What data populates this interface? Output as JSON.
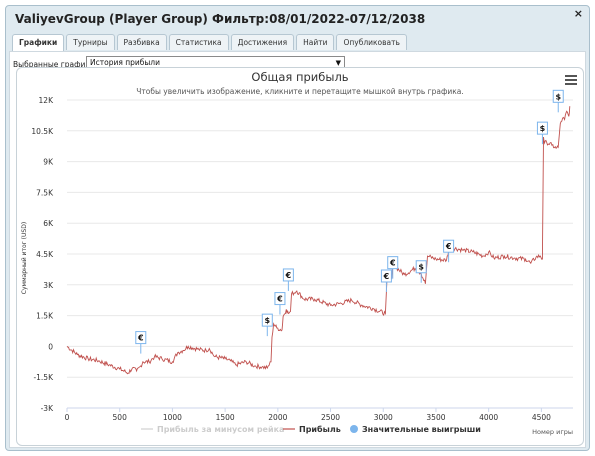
{
  "window": {
    "title": "ValiyevGroup (Player Group) Фильтр:08/01/2022-07/12/2038",
    "close_label": "×"
  },
  "tabs": [
    {
      "label": "Графики",
      "active": true
    },
    {
      "label": "Турниры",
      "active": false
    },
    {
      "label": "Разбивка",
      "active": false
    },
    {
      "label": "Статистика",
      "active": false
    },
    {
      "label": "Достижения",
      "active": false
    },
    {
      "label": "Найти",
      "active": false
    },
    {
      "label": "Опубликовать",
      "active": false
    }
  ],
  "selector": {
    "label": "Выбранные графики:",
    "value": "История прибыли"
  },
  "chart_data": {
    "type": "line",
    "title": "Общая прибыль",
    "subtitle": "Чтобы увеличить изображение, кликните и перетащите мышкой внутрь графика.",
    "xlabel": "Номер игры",
    "ylabel": "Суммарный итог (USD)",
    "xlim": [
      0,
      4800
    ],
    "ylim": [
      -3000,
      12000
    ],
    "x_ticks": [
      0,
      500,
      1000,
      1500,
      2000,
      2500,
      3000,
      3500,
      4000,
      4500
    ],
    "x_tick_labels": [
      "0",
      "500",
      "1000",
      "1500",
      "2000",
      "2500",
      "3000",
      "3500",
      "4000",
      "4500"
    ],
    "y_ticks": [
      -3000,
      -1500,
      0,
      1500,
      3000,
      4500,
      6000,
      7500,
      9000,
      10500,
      12000
    ],
    "y_tick_labels": [
      "-3K",
      "-1.5K",
      "0",
      "1.5K",
      "3K",
      "4.5K",
      "6K",
      "7.5K",
      "9K",
      "10.5K",
      "12K"
    ],
    "grid": true,
    "legend_position": "bottom-center",
    "series": [
      {
        "name": "Прибыль за минусом рейка",
        "visible": false,
        "color": "#d0d0d0"
      },
      {
        "name": "Прибыль",
        "color": "#c0504d",
        "points": [
          [
            0,
            0
          ],
          [
            100,
            -400
          ],
          [
            200,
            -600
          ],
          [
            300,
            -700
          ],
          [
            400,
            -900
          ],
          [
            500,
            -1100
          ],
          [
            580,
            -1300
          ],
          [
            620,
            -1050
          ],
          [
            660,
            -1200
          ],
          [
            700,
            -950
          ],
          [
            720,
            -750
          ],
          [
            780,
            -750
          ],
          [
            830,
            -500
          ],
          [
            900,
            -600
          ],
          [
            1000,
            -750
          ],
          [
            1050,
            -300
          ],
          [
            1100,
            -200
          ],
          [
            1150,
            0
          ],
          [
            1250,
            -150
          ],
          [
            1320,
            -200
          ],
          [
            1350,
            -100
          ],
          [
            1400,
            -500
          ],
          [
            1500,
            -600
          ],
          [
            1550,
            -700
          ],
          [
            1600,
            -900
          ],
          [
            1700,
            -750
          ],
          [
            1780,
            -950
          ],
          [
            1850,
            -1000
          ],
          [
            1900,
            -1050
          ],
          [
            1935,
            -750
          ],
          [
            1945,
            450
          ],
          [
            1960,
            1100
          ],
          [
            1990,
            900
          ],
          [
            2040,
            800
          ],
          [
            2050,
            1450
          ],
          [
            2080,
            1800
          ],
          [
            2100,
            1600
          ],
          [
            2120,
            1700
          ],
          [
            2130,
            2550
          ],
          [
            2180,
            2700
          ],
          [
            2250,
            2300
          ],
          [
            2350,
            2300
          ],
          [
            2500,
            2000
          ],
          [
            2600,
            2100
          ],
          [
            2700,
            2250
          ],
          [
            2800,
            2000
          ],
          [
            2900,
            1850
          ],
          [
            3020,
            1600
          ],
          [
            3035,
            3200
          ],
          [
            3060,
            3350
          ],
          [
            3080,
            3300
          ],
          [
            3090,
            4050
          ],
          [
            3110,
            3900
          ],
          [
            3200,
            3500
          ],
          [
            3300,
            3800
          ],
          [
            3360,
            3550
          ],
          [
            3400,
            3050
          ],
          [
            3420,
            4400
          ],
          [
            3500,
            4250
          ],
          [
            3600,
            4200
          ],
          [
            3620,
            4650
          ],
          [
            3650,
            4800
          ],
          [
            3750,
            4700
          ],
          [
            3850,
            4600
          ],
          [
            3950,
            4400
          ],
          [
            4000,
            4600
          ],
          [
            4050,
            4300
          ],
          [
            4150,
            4400
          ],
          [
            4250,
            4300
          ],
          [
            4350,
            4250
          ],
          [
            4400,
            4050
          ],
          [
            4450,
            4350
          ],
          [
            4490,
            4400
          ],
          [
            4510,
            4250
          ],
          [
            4520,
            10200
          ],
          [
            4530,
            9900
          ],
          [
            4550,
            9950
          ],
          [
            4600,
            9800
          ],
          [
            4640,
            9650
          ],
          [
            4660,
            9700
          ],
          [
            4680,
            10850
          ],
          [
            4700,
            11100
          ],
          [
            4720,
            11050
          ],
          [
            4740,
            11450
          ],
          [
            4760,
            11200
          ],
          [
            4770,
            11700
          ]
        ]
      },
      {
        "name": "Значительные выигрыши",
        "color": "#7cb5ec",
        "marker": "circle"
      }
    ],
    "flags": [
      {
        "x": 700,
        "y": -350,
        "symbol": "€"
      },
      {
        "x": 1900,
        "y": 500,
        "symbol": "$"
      },
      {
        "x": 2020,
        "y": 1550,
        "symbol": "€"
      },
      {
        "x": 2100,
        "y": 2700,
        "symbol": "€"
      },
      {
        "x": 3030,
        "y": 2650,
        "symbol": "€"
      },
      {
        "x": 3090,
        "y": 3300,
        "symbol": "€"
      },
      {
        "x": 3360,
        "y": 3100,
        "symbol": "$"
      },
      {
        "x": 3620,
        "y": 4100,
        "symbol": "€"
      },
      {
        "x": 4510,
        "y": 9850,
        "symbol": "$"
      },
      {
        "x": 4660,
        "y": 11400,
        "symbol": "$"
      }
    ]
  }
}
